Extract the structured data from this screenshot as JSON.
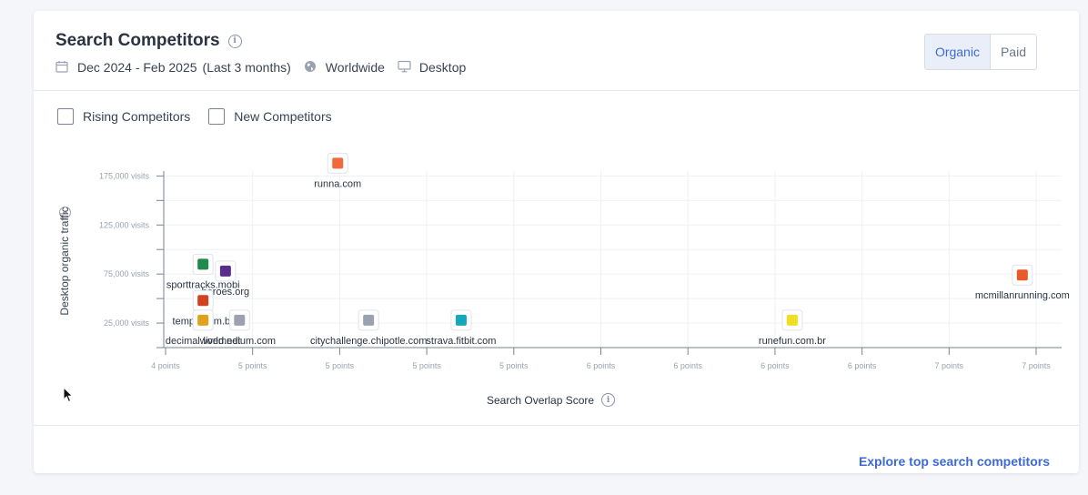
{
  "header": {
    "title": "Search Competitors",
    "date_range": "Dec 2024 - Feb 2025",
    "date_note": "(Last 3 months)",
    "region": "Worldwide",
    "device": "Desktop",
    "icons": {
      "calendar": "calendar-icon",
      "globe": "globe-icon",
      "monitor": "monitor-icon",
      "info": "info-icon"
    }
  },
  "toggle": {
    "options": [
      "Organic",
      "Paid"
    ],
    "selected": "Organic"
  },
  "filters": [
    {
      "label": "Rising Competitors",
      "checked": false
    },
    {
      "label": "New Competitors",
      "checked": false
    }
  ],
  "footer": {
    "link": "Explore top search competitors"
  },
  "colors": {
    "accent": "#3d6ad6",
    "grid": "#eef0f4",
    "axis": "#7a8392"
  },
  "chart_data": {
    "type": "scatter",
    "xlabel": "Search Overlap Score",
    "ylabel": "Desktop organic traffic",
    "x_ticks": [
      "4 points",
      "5 points",
      "5 points",
      "5 points",
      "5 points",
      "6 points",
      "6 points",
      "6 points",
      "6 points",
      "7 points",
      "7 points"
    ],
    "x_range": [
      4.0,
      7.2
    ],
    "y_ticks": [
      {
        "value": 25000,
        "label": "25,000 visits"
      },
      {
        "value": 75000,
        "label": "75,000 visits"
      },
      {
        "value": 125000,
        "label": "125,000 visits"
      },
      {
        "value": 175000,
        "label": "175,000 visits"
      }
    ],
    "ylim": [
      0,
      180000
    ],
    "grid": true,
    "points": [
      {
        "label": "runna.com",
        "x": 4.62,
        "y": 188000,
        "color": "#f06a3c",
        "icon": "runna-logo-icon"
      },
      {
        "label": "sporttracks.mobi",
        "x": 4.14,
        "y": 85000,
        "color": "#1f8a4c",
        "icon": "sporttracks-logo-icon"
      },
      {
        "label": "heroes.org",
        "x": 4.22,
        "y": 78000,
        "color": "#5a2d8a",
        "icon": "heroes-logo-icon"
      },
      {
        "label": "tempo.com.br",
        "x": 4.14,
        "y": 48000,
        "color": "#d1421f",
        "icon": "tempo-logo-icon"
      },
      {
        "label": "decimalworld.net",
        "x": 4.14,
        "y": 28000,
        "color": "#e0a21a",
        "icon": "decimal-logo-icon"
      },
      {
        "label": "livemedium.com",
        "x": 4.27,
        "y": 28000,
        "color": "#9aa2af",
        "icon": "livemedium-logo-icon"
      },
      {
        "label": "citychallenge.chipotle.com",
        "x": 4.73,
        "y": 28000,
        "color": "#9aa2af",
        "icon": "document-icon"
      },
      {
        "label": "strava.fitbit.com",
        "x": 5.06,
        "y": 28000,
        "color": "#14a8b8",
        "icon": "fitbit-logo-icon"
      },
      {
        "label": "runefun.com.br",
        "x": 6.24,
        "y": 28000,
        "color": "#f2de20",
        "icon": "runefun-logo-icon"
      },
      {
        "label": "mcmillanrunning.com",
        "x": 7.06,
        "y": 74000,
        "color": "#e85a2a",
        "icon": "mcmillan-logo-icon"
      }
    ]
  }
}
